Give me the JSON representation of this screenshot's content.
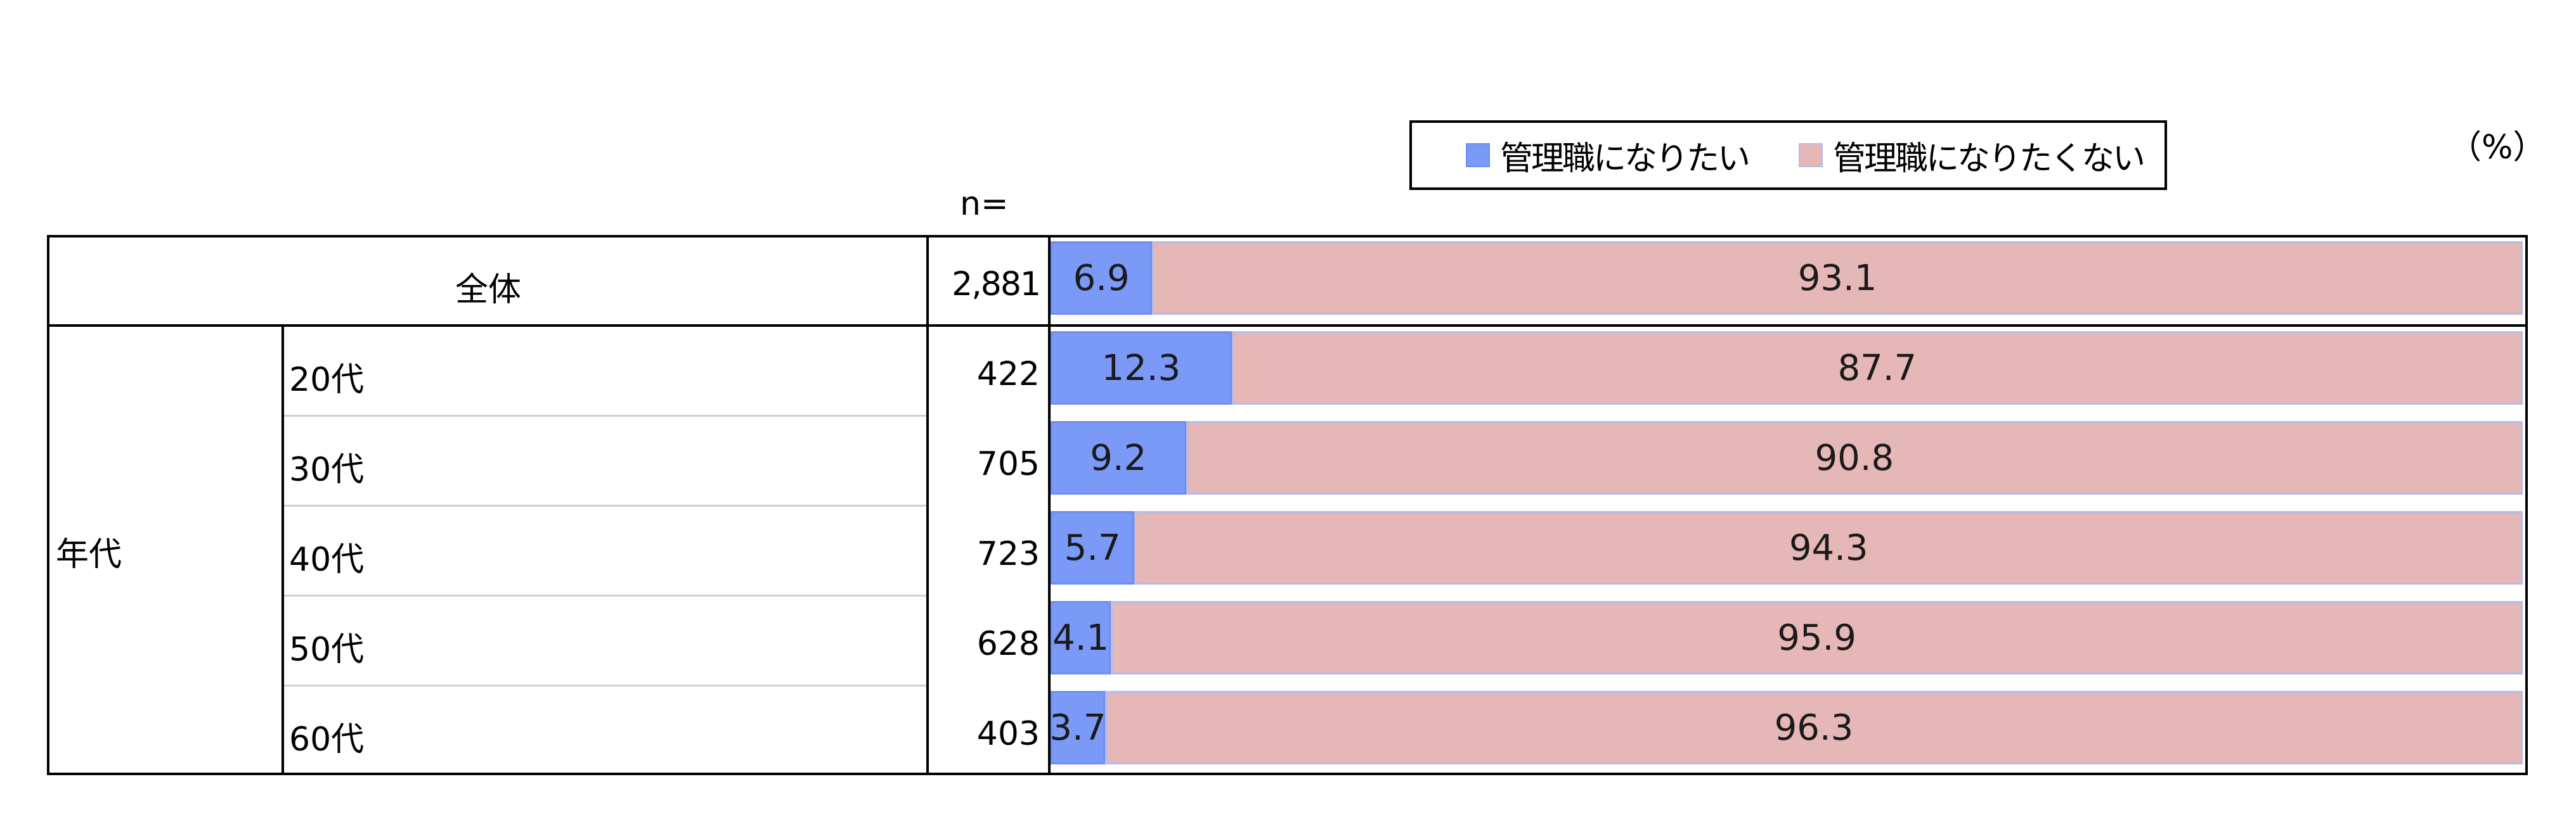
{
  "legend": {
    "items": [
      {
        "label": "管理職になりたい",
        "color": "#7b99f7"
      },
      {
        "label": "管理職になりたくない",
        "color": "#e6b7b7"
      }
    ]
  },
  "unit_label": "（%）",
  "n_header": "n=",
  "table": {
    "group_label": "年代",
    "rows": [
      {
        "label": "全体",
        "n": "2,881"
      },
      {
        "label": "20代",
        "n": "422"
      },
      {
        "label": "30代",
        "n": "705"
      },
      {
        "label": "40代",
        "n": "723"
      },
      {
        "label": "50代",
        "n": "628"
      },
      {
        "label": "60代",
        "n": "403"
      }
    ]
  },
  "chart_data": {
    "type": "bar",
    "orientation": "horizontal",
    "stacked": true,
    "normalized_percent": true,
    "categories": [
      "全体",
      "20代",
      "30代",
      "40代",
      "50代",
      "60代"
    ],
    "series": [
      {
        "name": "管理職になりたい",
        "values": [
          6.9,
          12.3,
          9.2,
          5.7,
          4.1,
          3.7
        ],
        "color": "#7b99f7"
      },
      {
        "name": "管理職になりたくない",
        "values": [
          93.1,
          87.7,
          90.8,
          94.3,
          95.9,
          96.3
        ],
        "color": "#e6b7b7"
      }
    ],
    "value_labels": [
      [
        "6.9",
        "12.3",
        "9.2",
        "5.7",
        "4.1",
        "3.7"
      ],
      [
        "93.1",
        "87.7",
        "90.8",
        "94.3",
        "95.9",
        "96.3"
      ]
    ],
    "xlim": [
      0,
      100
    ],
    "grid": false,
    "legend": "top"
  }
}
